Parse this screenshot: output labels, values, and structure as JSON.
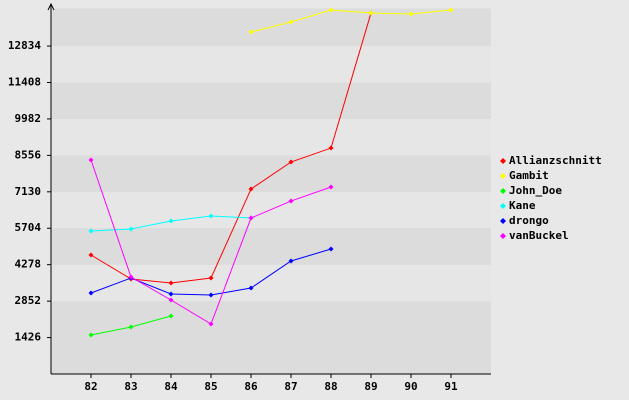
{
  "chart_data": {
    "type": "line",
    "categories": [
      "82",
      "83",
      "84",
      "85",
      "86",
      "87",
      "88",
      "89",
      "90",
      "91"
    ],
    "series": [
      {
        "name": "Allianzschnitt",
        "color": "#ff0000",
        "values": [
          4657,
          3717,
          3561,
          3757,
          7239,
          8296,
          8843,
          14126,
          null,
          null
        ]
      },
      {
        "name": "Gambit",
        "color": "#ffff00",
        "values": [
          null,
          null,
          null,
          null,
          13382,
          13774,
          14243,
          14126,
          14087,
          14243
        ]
      },
      {
        "name": "John_Doe",
        "color": "#00ff00",
        "values": [
          1526,
          1839,
          2270,
          null,
          null,
          null,
          null,
          null,
          null,
          null
        ]
      },
      {
        "name": "Kane",
        "color": "#00ffff",
        "values": [
          5596,
          5674,
          5987,
          6183,
          6104,
          null,
          null,
          null,
          null,
          null
        ]
      },
      {
        "name": "drongo",
        "color": "#0000ff",
        "values": [
          3170,
          3757,
          3130,
          3091,
          3365,
          4422,
          4891,
          null,
          null,
          null
        ]
      },
      {
        "name": "vanBuckel",
        "color": "#ff00ff",
        "values": [
          8374,
          3796,
          2896,
          1957,
          6104,
          6769,
          7317,
          null,
          null,
          null
        ]
      }
    ],
    "ylim": [
      0,
      14300
    ],
    "yticks": [
      1426,
      2852,
      4278,
      5704,
      7130,
      8556,
      9982,
      11408,
      12834
    ],
    "grid": true
  }
}
